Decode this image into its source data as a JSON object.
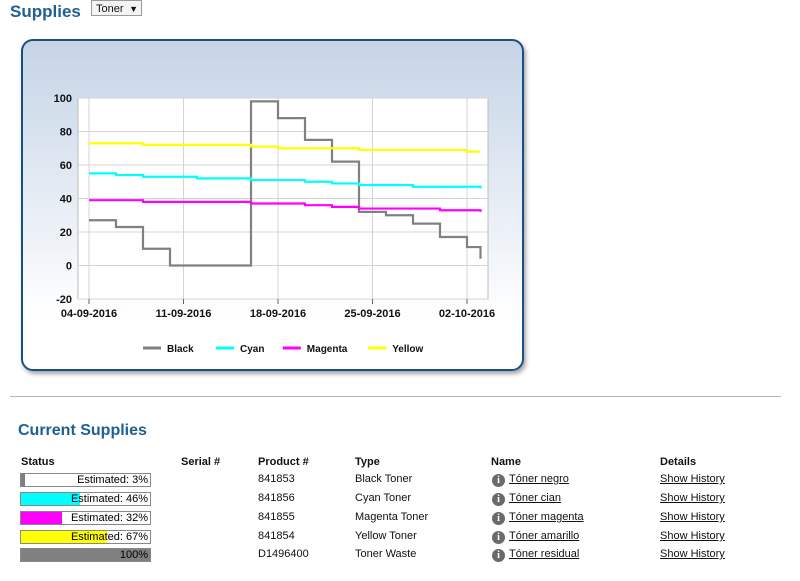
{
  "page": {
    "title": "Supplies",
    "selector_value": "Toner"
  },
  "chart_data": {
    "type": "line",
    "ylim": [
      -20,
      100
    ],
    "yticks": [
      "100",
      "80",
      "60",
      "40",
      "20",
      "0",
      "-20"
    ],
    "xticks": [
      "04-09-2016",
      "11-09-2016",
      "18-09-2016",
      "25-09-2016",
      "02-10-2016"
    ],
    "legend_position": "bottom",
    "x": [
      "2016-09-04",
      "2016-09-06",
      "2016-09-08",
      "2016-09-10",
      "2016-09-12",
      "2016-09-14",
      "2016-09-16",
      "2016-09-18",
      "2016-09-20",
      "2016-09-22",
      "2016-09-24",
      "2016-09-26",
      "2016-09-28",
      "2016-09-30",
      "2016-10-02",
      "2016-10-03"
    ],
    "series": [
      {
        "name": "Black",
        "color": "#808080",
        "values": [
          27,
          23,
          10,
          0,
          0,
          0,
          98,
          88,
          75,
          62,
          32,
          30,
          25,
          17,
          11,
          4
        ]
      },
      {
        "name": "Cyan",
        "color": "#00ffff",
        "values": [
          55,
          54,
          53,
          53,
          52,
          52,
          51,
          51,
          50,
          49,
          48,
          48,
          47,
          47,
          47,
          46
        ]
      },
      {
        "name": "Magenta",
        "color": "#ff00ff",
        "values": [
          39,
          39,
          38,
          38,
          38,
          38,
          37,
          37,
          36,
          35,
          34,
          34,
          34,
          33,
          33,
          32
        ]
      },
      {
        "name": "Yellow",
        "color": "#ffff00",
        "values": [
          73,
          73,
          72,
          72,
          72,
          72,
          71,
          70,
          70,
          70,
          69,
          69,
          69,
          69,
          68,
          68
        ]
      }
    ]
  },
  "current": {
    "title": "Current Supplies",
    "headers": {
      "status": "Status",
      "serial": "Serial #",
      "product": "Product #",
      "type": "Type",
      "name": "Name",
      "details": "Details"
    },
    "rows": [
      {
        "status": "Estimated: 3%",
        "level": 3,
        "color": "#808080",
        "serial": "",
        "product": "841853",
        "type": "Black Toner",
        "name": "Tóner negro",
        "details": "Show History"
      },
      {
        "status": "Estimated: 46%",
        "level": 46,
        "color": "#00ffff",
        "serial": "",
        "product": "841856",
        "type": "Cyan Toner",
        "name": "Tóner cian",
        "details": "Show History"
      },
      {
        "status": "Estimated: 32%",
        "level": 32,
        "color": "#ff00ff",
        "serial": "",
        "product": "841855",
        "type": "Magenta Toner",
        "name": "Tóner magenta",
        "details": "Show History"
      },
      {
        "status": "Estimated: 67%",
        "level": 67,
        "color": "#ffff00",
        "serial": "",
        "product": "841854",
        "type": "Yellow Toner",
        "name": "Tóner amarillo",
        "details": "Show History"
      },
      {
        "status": "100%",
        "level": 100,
        "color": "#808080",
        "serial": "",
        "product": "D1496400",
        "type": "Toner Waste",
        "name": "Tóner residual",
        "details": "Show History"
      }
    ]
  }
}
